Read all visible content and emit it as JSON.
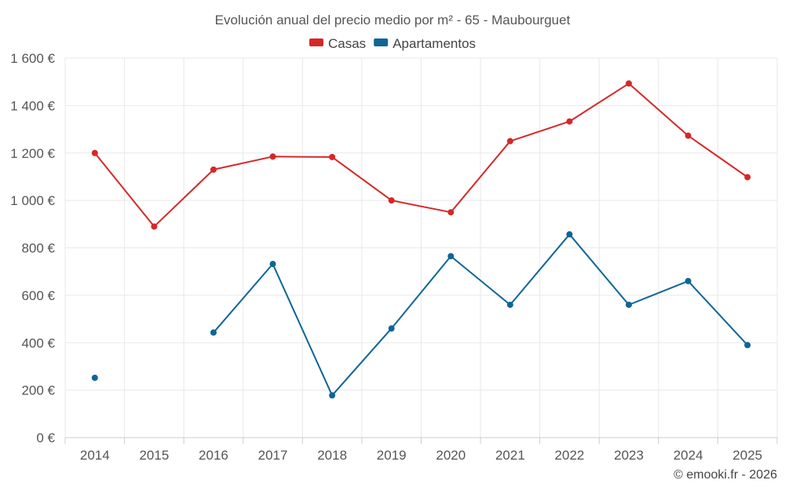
{
  "chart_data": {
    "type": "line",
    "title": "Evolución anual del precio medio por m² - 65 - Maubourguet",
    "categories": [
      "2014",
      "2015",
      "2016",
      "2017",
      "2018",
      "2019",
      "2020",
      "2021",
      "2022",
      "2023",
      "2024",
      "2025"
    ],
    "series": [
      {
        "name": "Casas",
        "color": "#d62728",
        "values": [
          1200,
          890,
          1130,
          1185,
          1183,
          1000,
          950,
          1250,
          1333,
          1493,
          1273,
          1098
        ]
      },
      {
        "name": "Apartamentos",
        "color": "#0e6596",
        "values": [
          252,
          null,
          443,
          732,
          178,
          460,
          765,
          560,
          857,
          560,
          660,
          390
        ]
      }
    ],
    "ylim": [
      0,
      1600
    ],
    "yticks": [
      0,
      200,
      400,
      600,
      800,
      1000,
      1200,
      1400,
      1600
    ],
    "ytick_labels": [
      "0 €",
      "200 €",
      "400 €",
      "600 €",
      "800 €",
      "1 000 €",
      "1 200 €",
      "1 400 €",
      "1 600 €"
    ],
    "xlabel": "",
    "ylabel": "",
    "grid": true,
    "legend_position": "top-center"
  },
  "credit": "© emooki.fr - 2026"
}
